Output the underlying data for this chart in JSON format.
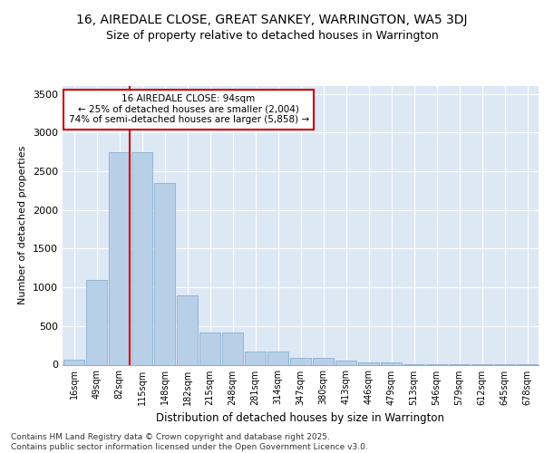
{
  "title_line1": "16, AIREDALE CLOSE, GREAT SANKEY, WARRINGTON, WA5 3DJ",
  "title_line2": "Size of property relative to detached houses in Warrington",
  "xlabel": "Distribution of detached houses by size in Warrington",
  "ylabel": "Number of detached properties",
  "categories": [
    "16sqm",
    "49sqm",
    "82sqm",
    "115sqm",
    "148sqm",
    "182sqm",
    "215sqm",
    "248sqm",
    "281sqm",
    "314sqm",
    "347sqm",
    "380sqm",
    "413sqm",
    "446sqm",
    "479sqm",
    "513sqm",
    "546sqm",
    "579sqm",
    "612sqm",
    "645sqm",
    "678sqm"
  ],
  "values": [
    60,
    1100,
    2750,
    2750,
    2350,
    900,
    420,
    420,
    175,
    175,
    90,
    90,
    55,
    30,
    30,
    10,
    5,
    2,
    2,
    1,
    1
  ],
  "bar_color": "#b8cfe8",
  "bar_edge_color": "#8aafd0",
  "vline_color": "#cc0000",
  "annotation_text": "16 AIREDALE CLOSE: 94sqm\n← 25% of detached houses are smaller (2,004)\n74% of semi-detached houses are larger (5,858) →",
  "annotation_box_color": "#ffffff",
  "annotation_box_edge": "#cc0000",
  "ylim": [
    0,
    3600
  ],
  "yticks": [
    0,
    500,
    1000,
    1500,
    2000,
    2500,
    3000,
    3500
  ],
  "bg_color": "#dde8f5",
  "footer_line1": "Contains HM Land Registry data © Crown copyright and database right 2025.",
  "footer_line2": "Contains public sector information licensed under the Open Government Licence v3.0.",
  "title_fontsize": 10,
  "subtitle_fontsize": 9,
  "footer_fontsize": 6.5
}
